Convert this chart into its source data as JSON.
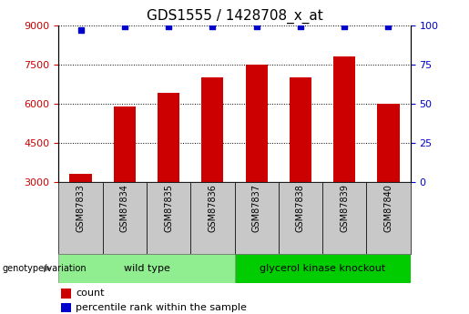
{
  "title": "GDS1555 / 1428708_x_at",
  "samples": [
    "GSM87833",
    "GSM87834",
    "GSM87835",
    "GSM87836",
    "GSM87837",
    "GSM87838",
    "GSM87839",
    "GSM87840"
  ],
  "counts": [
    3300,
    5900,
    6400,
    7000,
    7500,
    7000,
    7800,
    6000
  ],
  "percentile_ranks": [
    97,
    99,
    99,
    99,
    99,
    99,
    99,
    99
  ],
  "bar_color": "#cc0000",
  "dot_color": "#0000cc",
  "ylim_left": [
    3000,
    9000
  ],
  "ylim_right": [
    0,
    100
  ],
  "yticks_left": [
    3000,
    4500,
    6000,
    7500,
    9000
  ],
  "yticks_right": [
    0,
    25,
    50,
    75,
    100
  ],
  "grid_color": "#000000",
  "n_wild_type": 4,
  "wild_type_label": "wild type",
  "knockout_label": "glycerol kinase knockout",
  "wild_type_color": "#90ee90",
  "knockout_color": "#00cc00",
  "genotype_label": "genotype/variation",
  "legend_count_label": "count",
  "legend_percentile_label": "percentile rank within the sample",
  "bar_width": 0.5,
  "tick_label_color_left": "#cc0000",
  "tick_label_color_right": "#0000cc",
  "title_fontsize": 11,
  "axis_fontsize": 8,
  "legend_fontsize": 8,
  "sample_box_color": "#c8c8c8"
}
